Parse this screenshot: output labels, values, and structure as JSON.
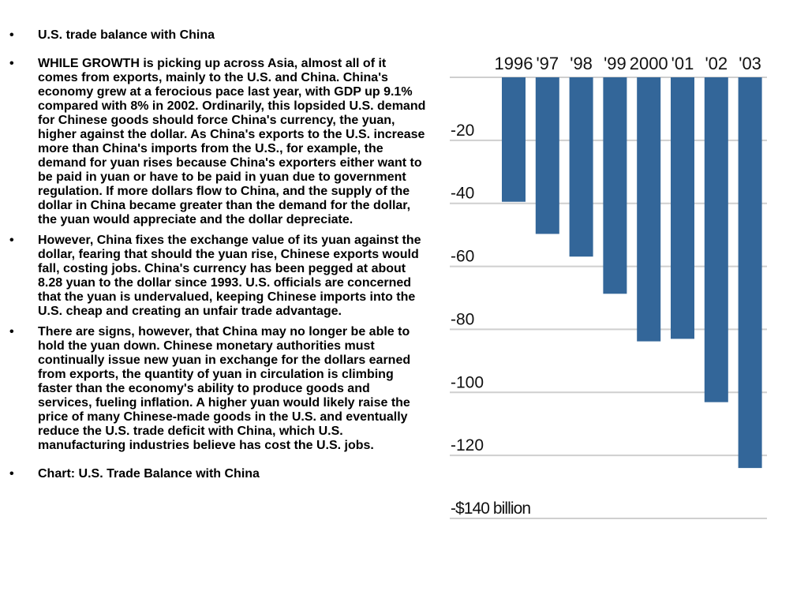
{
  "bullets": [
    "U.S. trade balance with China",
    "WHILE GROWTH is picking up across Asia, almost all of it comes from exports, mainly to the U.S. and China. China's economy grew at a ferocious pace last year, with GDP up 9.1% compared with 8% in 2002. Ordinarily, this lopsided U.S. demand for Chinese goods should force China's currency, the yuan, higher against the dollar. As China's exports to the U.S. increase more than China's imports from the U.S., for example, the demand for yuan rises because China's exporters either want to be paid in yuan or have to be paid in yuan due to government regulation. If more dollars flow to China, and the supply of the dollar in China became greater than the demand for the dollar, the yuan would appreciate and the dollar depreciate.",
    "However, China fixes the exchange value of its yuan against the dollar, fearing that should the yuan rise, Chinese exports would fall, costing jobs. China's currency has been pegged at about 8.28 yuan to the dollar since 1993. U.S. officials are concerned that the yuan is undervalued, keeping Chinese imports into the U.S. cheap and creating an unfair trade advantage.",
    "There are signs, however, that China may no longer be able to hold the yuan down. Chinese monetary authorities must continually issue new yuan in exchange for the dollars earned from exports, the quantity of yuan in circulation is climbing faster than the economy's ability to produce goods and services, fueling inflation. A higher yuan would likely raise the price of many Chinese-made goods in the U.S. and eventually reduce the U.S. trade deficit with China, which U.S. manufacturing industries believe has cost the U.S. jobs.",
    "Chart: U.S. Trade Balance with China"
  ],
  "bullet_symbol": "•",
  "chart_data": {
    "type": "bar",
    "categories": [
      "1996",
      "'97",
      "'98",
      "'99",
      "2000",
      "'01",
      "'02",
      "'03"
    ],
    "values": [
      -39.5,
      -49.7,
      -56.9,
      -68.7,
      -83.8,
      -83.0,
      -103.1,
      -124.0
    ],
    "y_tick_labels": [
      "-20",
      "-40",
      "-60",
      "-80",
      "-100",
      "-120",
      "-$140 billion"
    ],
    "y_tick_values": [
      -20,
      -40,
      -60,
      -80,
      -100,
      -120,
      -140
    ],
    "ylim": [
      -140,
      0
    ],
    "bar_color": "#336699",
    "grid": true,
    "title": "",
    "xlabel": "",
    "ylabel": ""
  }
}
